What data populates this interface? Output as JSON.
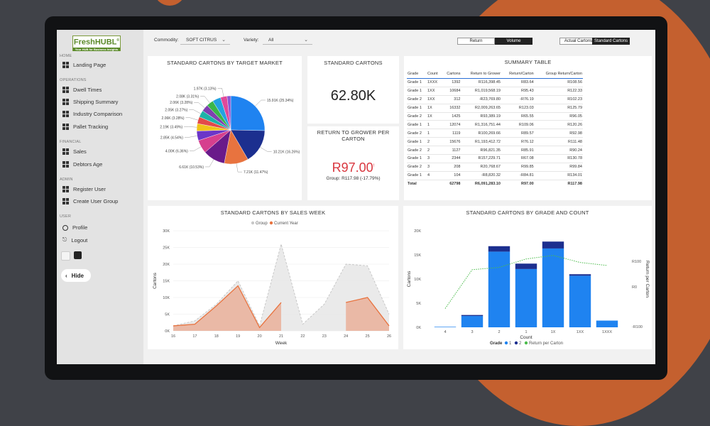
{
  "sidebar": {
    "logo": {
      "text": "FreshHUBL",
      "registered": "®",
      "tagline": "Your HUB for Business Insights"
    },
    "sections": [
      {
        "title": "HOME",
        "items": [
          {
            "label": "Landing Page",
            "icon": "grid-icon"
          }
        ]
      },
      {
        "title": "OPERATIONS",
        "items": [
          {
            "label": "Dwell Times",
            "icon": "grid-icon"
          },
          {
            "label": "Shipping Summary",
            "icon": "grid-icon"
          },
          {
            "label": "Industry Comparison",
            "icon": "grid-icon"
          },
          {
            "label": "Pallet Tracking",
            "icon": "grid-icon"
          }
        ]
      },
      {
        "title": "FINANCIAL",
        "items": [
          {
            "label": "Sales",
            "icon": "grid-icon"
          },
          {
            "label": "Debtors Age",
            "icon": "grid-icon"
          }
        ]
      },
      {
        "title": "ADMIN",
        "items": [
          {
            "label": "Register User",
            "icon": "grid-icon"
          },
          {
            "label": "Create User Group",
            "icon": "grid-icon"
          }
        ]
      },
      {
        "title": "USER",
        "items": [
          {
            "label": "Profile",
            "icon": "profile-icon"
          },
          {
            "label": "Logout",
            "icon": "logout-icon"
          }
        ]
      }
    ],
    "theme_swatches": [
      "#f4f4f4",
      "#222222"
    ],
    "hide_label": "Hide"
  },
  "filters": {
    "commodity_label": "Commodity:",
    "commodity_value": "SOFT CITRUS",
    "variety_label": "Variety:",
    "variety_value": "All"
  },
  "toggles": {
    "return": "Return",
    "volume": "Volume",
    "actual": "Actual Cartons",
    "standard": "Standard Cartons"
  },
  "colors": {
    "accent": "#1f83f0",
    "dark_navy": "#1c2f8f",
    "orange": "#e8733f",
    "red": "#d9363e",
    "green_dotted": "#4cbc4c"
  },
  "kpi": {
    "title": "STANDARD CARTONS",
    "value": "62.80K"
  },
  "rtg": {
    "title_line1": "RETURN TO GROWER PER",
    "title_line2": "CARTON",
    "value": "R97.00",
    "marker": "!",
    "group": "Group: R117.98 (-17.79%)"
  },
  "summary": {
    "title": "SUMMARY TABLE",
    "headers": [
      "Grade",
      "Count",
      "Cartons",
      "Return to Grower",
      "Return/Carton",
      "Group Return/Carton"
    ],
    "rows": [
      [
        "Grade 1",
        "1XXX",
        "1392",
        "R116,398.45",
        "R83.64",
        "R108.56"
      ],
      [
        "Grade 1",
        "1XX",
        "10684",
        "R1,019,568.19",
        "R95.43",
        "R122.33"
      ],
      [
        "Grade 2",
        "1XX",
        "312",
        "-R23,769.80",
        "-R76.19",
        "R102.23"
      ],
      [
        "Grade 1",
        "1X",
        "16332",
        "R2,009,263.65",
        "R123.03",
        "R125.79"
      ],
      [
        "Grade 2",
        "1X",
        "1425",
        "R93,389.19",
        "R65.55",
        "R96.05"
      ],
      [
        "Grade 1",
        "1",
        "12074",
        "R1,316,751.44",
        "R109.06",
        "R120.26"
      ],
      [
        "Grade 2",
        "1",
        "1119",
        "R100,269.66",
        "R89.57",
        "R92.98"
      ],
      [
        "Grade 1",
        "2",
        "15676",
        "R1,193,412.72",
        "R76.12",
        "R111.48"
      ],
      [
        "Grade 2",
        "2",
        "1127",
        "R96,821.35",
        "R85.91",
        "R90.24"
      ],
      [
        "Grade 1",
        "3",
        "2344",
        "R157,229.71",
        "R67.08",
        "R130.78"
      ],
      [
        "Grade 2",
        "3",
        "208",
        "R20,768.67",
        "R99.85",
        "R99.84"
      ],
      [
        "Grade 1",
        "4",
        "104",
        "-R8,820.32",
        "-R84.81",
        "R134.01"
      ]
    ],
    "total": [
      "Total",
      "",
      "62798",
      "R6,091,283.10",
      "R97.00",
      "R117.98"
    ]
  },
  "chart_data": [
    {
      "type": "pie",
      "title": "STANDARD CARTONS BY TARGET MARKET",
      "slices": [
        {
          "value": 15.91,
          "label": "15.91K (25.34%)",
          "color": "#1f83f0"
        },
        {
          "value": 10.21,
          "label": "10.21K (16.26%)",
          "color": "#1c2f8f"
        },
        {
          "value": 7.21,
          "label": "7.21K (11.47%)",
          "color": "#e8733f"
        },
        {
          "value": 6.61,
          "label": "6.61K (10.53%)",
          "color": "#6a1a8a"
        },
        {
          "value": 4.0,
          "label": "4.00K (6.36%)",
          "color": "#d63f8e"
        },
        {
          "value": 2.85,
          "label": "2.85K (4.54%)",
          "color": "#6b36c8"
        },
        {
          "value": 2.19,
          "label": "2.19K (3.49%)",
          "color": "#f0c41a"
        },
        {
          "value": 2.06,
          "label": "2.06K (3.28%)",
          "color": "#e34a4a"
        },
        {
          "value": 2.05,
          "label": "2.05K (3.27%)",
          "color": "#1eb3a8"
        },
        {
          "value": 2.06,
          "label": "2.06K (3.28%)",
          "color": "#7f3fb0"
        },
        {
          "value": 2.08,
          "label": "2.08K (3.31%)",
          "color": "#3ab648"
        },
        {
          "value": 2.5,
          "label": "",
          "color": "#23a2e0"
        },
        {
          "value": 1.97,
          "label": "1.97K (3.13%)",
          "color": "#e0499a"
        },
        {
          "value": 1.1,
          "label": "",
          "color": "#8a56d4"
        }
      ]
    },
    {
      "type": "area",
      "title": "STANDARD CARTONS BY SALES WEEK",
      "legend": [
        "Group",
        "Current Year"
      ],
      "xlabel": "Week",
      "ylabel": "Cartons",
      "ylim": [
        0,
        30000
      ],
      "yticks": [
        "0K",
        "5K",
        "10K",
        "15K",
        "20K",
        "25K",
        "30K"
      ],
      "x": [
        "16",
        "17",
        "18",
        "19",
        "20",
        "21",
        "22",
        "23",
        "24",
        "25",
        "26"
      ],
      "series": [
        {
          "name": "Group",
          "color": "#c8c8c8",
          "values": [
            1500,
            3000,
            8000,
            15000,
            1500,
            26000,
            2000,
            8000,
            20000,
            19500,
            5000
          ]
        },
        {
          "name": "Current Year",
          "color": "#e8733f",
          "values": [
            1500,
            2000,
            7500,
            13500,
            1000,
            8500,
            null,
            null,
            8500,
            10000,
            1500
          ]
        }
      ]
    },
    {
      "type": "bar",
      "title": "STANDARD CARTONS BY GRADE AND COUNT",
      "xlabel": "Count",
      "ylabel": "Cartons",
      "y2label": "Return per Carton",
      "ylim": [
        0,
        20000
      ],
      "yticks": [
        "0K",
        "5K",
        "10K",
        "15K",
        "20K"
      ],
      "y2ticks": [
        "R100",
        "R0",
        "-R100"
      ],
      "categories": [
        "4",
        "3",
        "2",
        "1",
        "1X",
        "1XX",
        "1XXX"
      ],
      "legend_title": "Grade",
      "legend": [
        "1",
        "2",
        "Return per Carton"
      ],
      "series": [
        {
          "name": "1",
          "color": "#1f83f0",
          "values": [
            104,
            2344,
            15676,
            12074,
            16332,
            10684,
            1392
          ]
        },
        {
          "name": "2",
          "color": "#1c2f8f",
          "values": [
            0,
            208,
            1127,
            1119,
            1425,
            312,
            0
          ]
        },
        {
          "name": "Return per Carton",
          "color": "#4cbc4c",
          "values": [
            -84.81,
            67.08,
            76.12,
            109.06,
            123.03,
            95.43,
            83.64
          ]
        }
      ]
    }
  ]
}
